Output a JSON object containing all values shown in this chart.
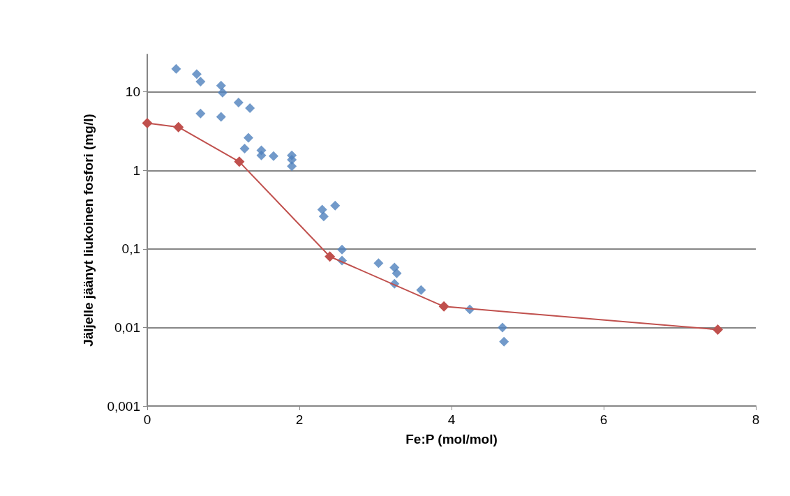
{
  "chart_data": {
    "type": "scatter",
    "xlabel": "Fe:P (mol/mol)",
    "ylabel": "Jäljelle jäänyt liukoinen fosfori (mg/l)",
    "log": "y",
    "grid": "y",
    "marker": "diamond",
    "xlim": [
      0,
      8
    ],
    "xticks": [
      0,
      2,
      4,
      6,
      8
    ],
    "ylim": [
      0.001,
      30
    ],
    "yticks": [
      {
        "value": 0.001,
        "label": "0,001"
      },
      {
        "value": 0.01,
        "label": "0,01"
      },
      {
        "value": 0.1,
        "label": "0,1"
      },
      {
        "value": 1,
        "label": "1"
      },
      {
        "value": 10,
        "label": "10"
      }
    ],
    "series": [
      {
        "color": "#4f81bd",
        "x": [
          0.38,
          0.65,
          0.7,
          0.97,
          0.99,
          0.7,
          0.97,
          1.2,
          1.35,
          1.33,
          1.28,
          1.5,
          1.5,
          1.66,
          1.9,
          1.9,
          1.9,
          2.3,
          2.32,
          2.47,
          2.56,
          2.56,
          3.04,
          3.25,
          3.28,
          3.25,
          3.6,
          4.24,
          4.67,
          4.69
        ],
        "values": [
          19.6,
          16.8,
          13.5,
          12,
          9.8,
          5.3,
          4.8,
          7.3,
          6.2,
          2.6,
          1.9,
          1.8,
          1.55,
          1.52,
          1.55,
          1.37,
          1.13,
          0.316,
          0.26,
          0.356,
          0.098,
          0.071,
          0.066,
          0.058,
          0.049,
          0.036,
          0.03,
          0.017,
          0.01,
          0.0066
        ]
      },
      {
        "type": "line",
        "color": "#c0504d",
        "x": [
          0,
          0.41,
          1.21,
          2.4,
          3.9,
          7.5
        ],
        "values": [
          4,
          3.56,
          1.29,
          0.08,
          0.0185,
          0.0094
        ]
      }
    ]
  }
}
